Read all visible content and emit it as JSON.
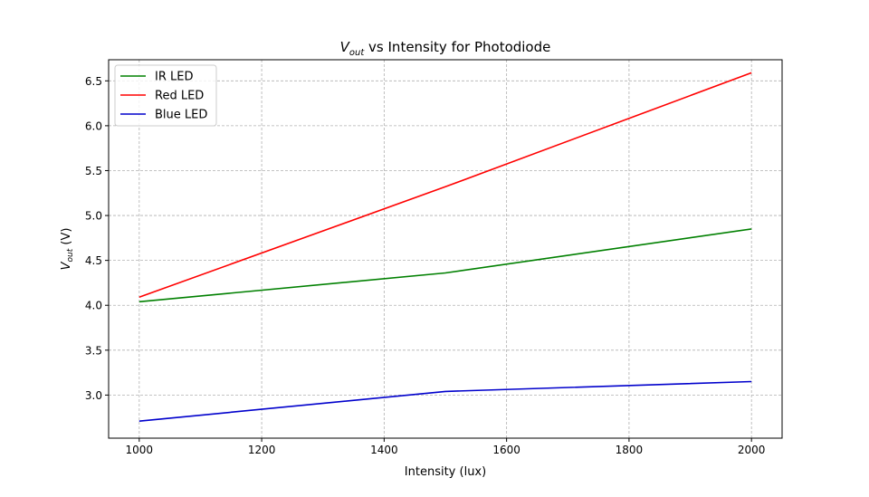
{
  "chart_data": {
    "type": "line",
    "title": {
      "main": "V",
      "sub": "out",
      "rest": " vs Intensity for Photodiode"
    },
    "xlabel": "Intensity (lux)",
    "ylabel": {
      "main": "V",
      "sub": "out",
      "rest": " (V)"
    },
    "xlim": [
      950,
      2050
    ],
    "ylim": [
      2.52,
      6.735
    ],
    "xticks": [
      1000,
      1200,
      1400,
      1600,
      1800,
      2000
    ],
    "yticks": [
      3.0,
      3.5,
      4.0,
      4.5,
      5.0,
      5.5,
      6.0,
      6.5
    ],
    "grid": true,
    "legend_position": "top-left",
    "series": [
      {
        "name": "IR LED",
        "color": "#008000",
        "points": [
          [
            1000,
            4.04
          ],
          [
            1500,
            4.36
          ],
          [
            2000,
            4.85
          ]
        ]
      },
      {
        "name": "Red LED",
        "color": "#ff0000",
        "points": [
          [
            1000,
            4.09
          ],
          [
            1500,
            5.32
          ],
          [
            2000,
            6.59
          ]
        ]
      },
      {
        "name": "Blue LED",
        "color": "#0000cc",
        "points": [
          [
            1000,
            2.71
          ],
          [
            1500,
            3.04
          ],
          [
            2000,
            3.15
          ]
        ]
      }
    ]
  }
}
